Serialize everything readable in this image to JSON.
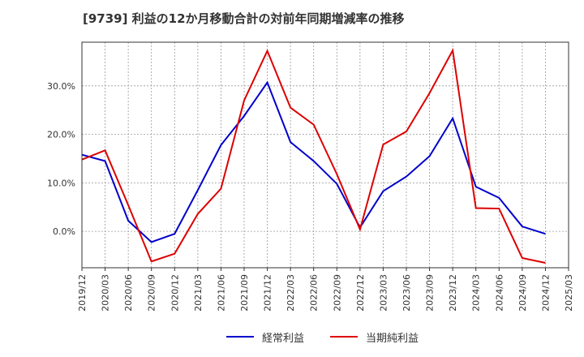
{
  "chart_data": {
    "type": "line",
    "title": "[9739]  利益の12か月移動合計の対前年同期増減率の推移",
    "xlabel": "",
    "ylabel": "",
    "x": [
      "2019/12",
      "2020/03",
      "2020/06",
      "2020/09",
      "2020/12",
      "2021/03",
      "2021/06",
      "2021/09",
      "2021/12",
      "2022/03",
      "2022/06",
      "2022/09",
      "2022/12",
      "2023/03",
      "2023/06",
      "2023/09",
      "2023/12",
      "2024/03",
      "2024/06",
      "2024/09",
      "2024/12",
      "2025/03"
    ],
    "yticks": [
      "0.0%",
      "10.0%",
      "20.0%",
      "30.0%"
    ],
    "ytick_values": [
      0,
      10,
      20,
      30
    ],
    "ylim": [
      -7.5,
      39
    ],
    "grid": true,
    "series": [
      {
        "name": "経常利益",
        "color": "#0000cc",
        "values": [
          15.8,
          14.5,
          2.2,
          -2.2,
          -0.5,
          8.5,
          17.8,
          23.8,
          30.7,
          18.4,
          14.5,
          9.8,
          0.8,
          8.3,
          11.3,
          15.5,
          23.3,
          9.2,
          6.9,
          1.0,
          -0.5,
          null
        ]
      },
      {
        "name": "当期純利益",
        "color": "#dd0000",
        "values": [
          14.8,
          16.7,
          5.4,
          -6.2,
          -4.6,
          3.6,
          8.8,
          27.0,
          37.2,
          25.5,
          22.0,
          11.8,
          0.4,
          17.9,
          20.6,
          28.5,
          37.3,
          4.8,
          4.7,
          -5.5,
          -6.5,
          null
        ]
      }
    ]
  }
}
